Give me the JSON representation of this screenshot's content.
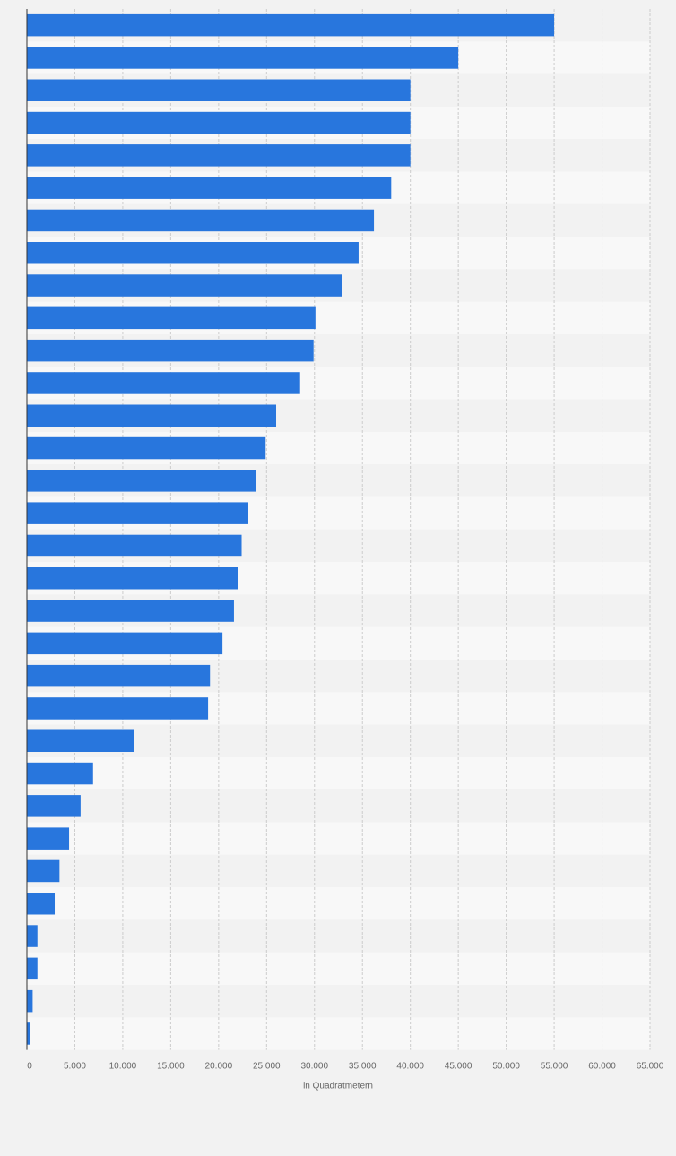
{
  "chart_data": {
    "type": "bar",
    "orientation": "horizontal",
    "xlabel": "in Quadratmetern",
    "ylabel": "",
    "xlim": [
      0,
      65000
    ],
    "ticks": [
      0,
      5000,
      10000,
      15000,
      20000,
      25000,
      30000,
      35000,
      40000,
      45000,
      50000,
      55000,
      60000,
      65000
    ],
    "tick_labels": [
      "0",
      "5.000",
      "10.000",
      "15.000",
      "20.000",
      "25.000",
      "30.000",
      "35.000",
      "40.000",
      "45.000",
      "50.000",
      "55.000",
      "60.000",
      "65.000"
    ],
    "grid": true,
    "values": [
      55000,
      45000,
      40000,
      40000,
      40000,
      38000,
      36200,
      34600,
      32900,
      30100,
      29900,
      28500,
      26000,
      24900,
      23900,
      23100,
      22400,
      22000,
      21600,
      20400,
      19100,
      18900,
      11200,
      6900,
      5600,
      4400,
      3400,
      2900,
      1100,
      1100,
      600,
      300
    ],
    "bar_color": "#2876dd",
    "band_colors": [
      "#f2f2f2",
      "#f8f8f8"
    ],
    "gridline_color": "#cccccc",
    "axis_color": "#333333"
  }
}
